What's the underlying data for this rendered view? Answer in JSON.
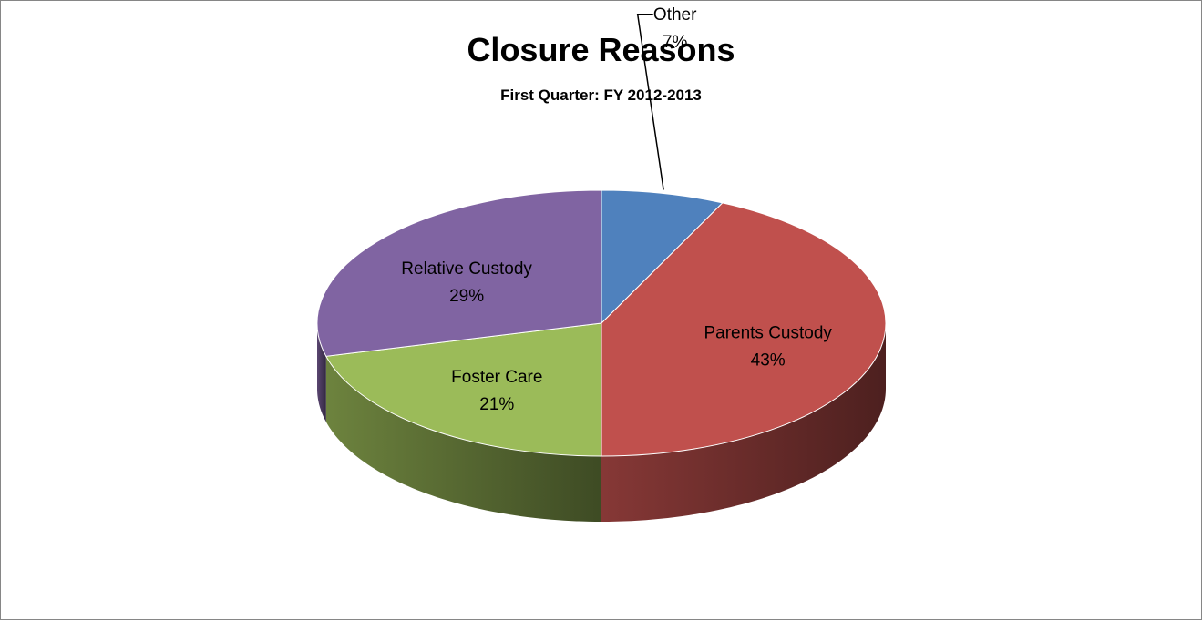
{
  "chart_data": {
    "type": "pie",
    "title": "Closure Reasons",
    "subtitle": "First Quarter:  FY 2012-2013",
    "slices": [
      {
        "label": "Other",
        "value": 7,
        "value_label": "7%",
        "color": "#4f81bd",
        "label_placement": "outside-leader"
      },
      {
        "label": "Parents Custody",
        "value": 43,
        "value_label": "43%",
        "color": "#c0504d",
        "label_placement": "inside"
      },
      {
        "label": "Foster Care",
        "value": 21,
        "value_label": "21%",
        "color": "#9bbb59",
        "label_placement": "inside"
      },
      {
        "label": "Relative Custody",
        "value": 29,
        "value_label": "29%",
        "color": "#8064a2",
        "label_placement": "inside"
      }
    ],
    "start_angle": "top",
    "direction": "clockwise",
    "style": "3d"
  }
}
